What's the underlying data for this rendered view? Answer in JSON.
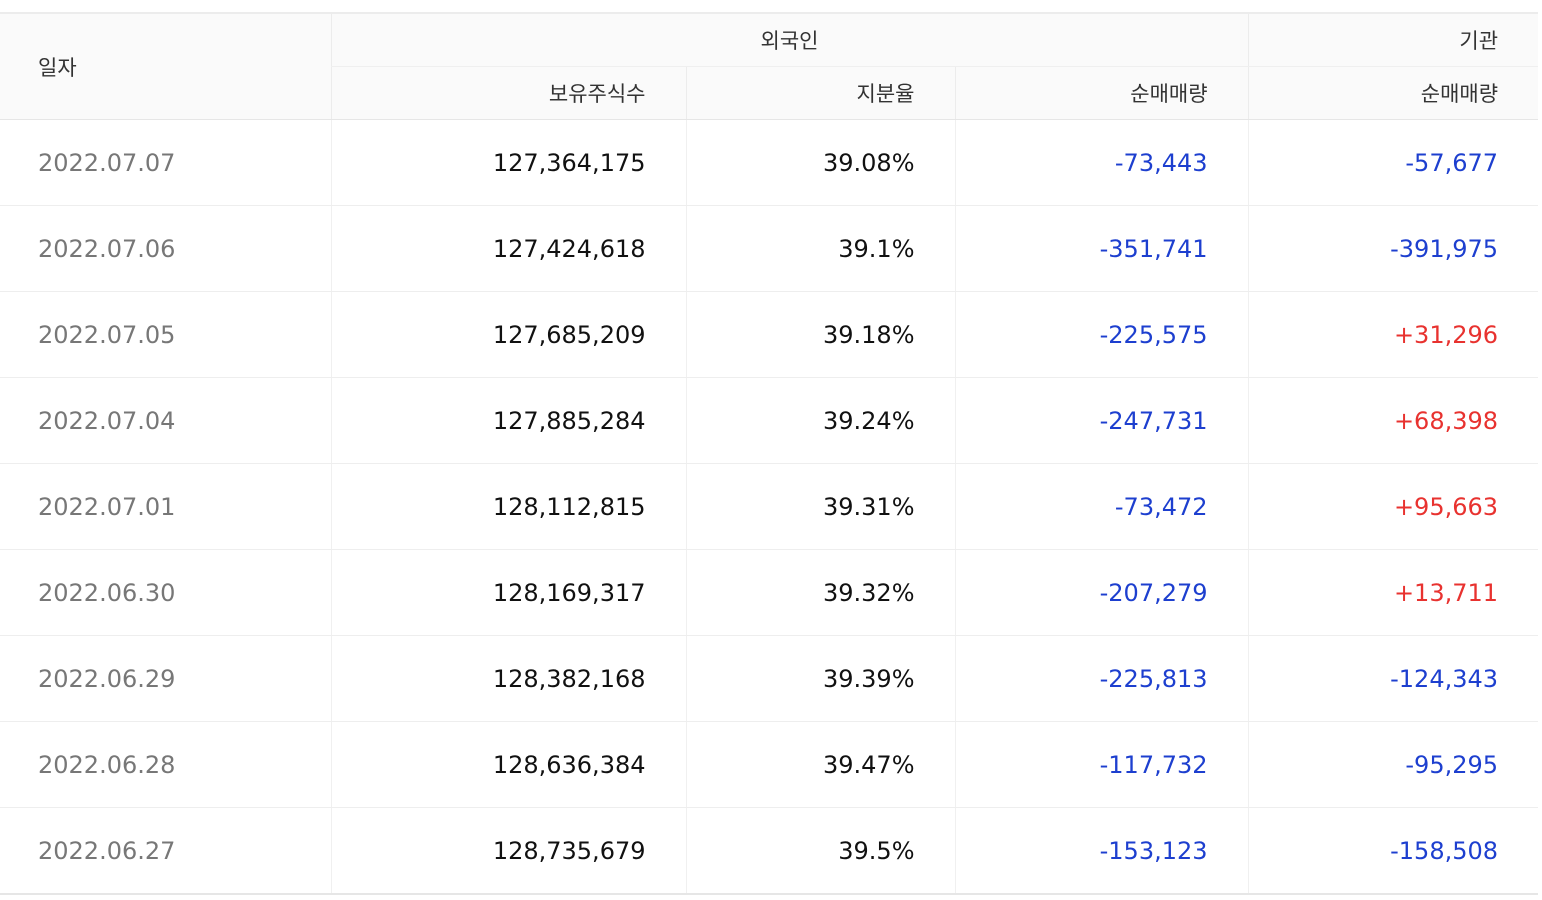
{
  "header": {
    "date_label": "일자",
    "foreign_label": "외국인",
    "institution_label": "기관",
    "holdings_label": "보유주식수",
    "ratio_label": "지분율",
    "foreign_net_label": "순매매량",
    "institution_net_label": "순매매량"
  },
  "colors": {
    "negative": "#1d3fcf",
    "positive": "#e8322f"
  },
  "rows": [
    {
      "date": "2022.07.07",
      "holdings": "127,364,175",
      "ratio": "39.08%",
      "foreign_net": "-73,443",
      "institution_net": "-57,677"
    },
    {
      "date": "2022.07.06",
      "holdings": "127,424,618",
      "ratio": "39.1%",
      "foreign_net": "-351,741",
      "institution_net": "-391,975"
    },
    {
      "date": "2022.07.05",
      "holdings": "127,685,209",
      "ratio": "39.18%",
      "foreign_net": "-225,575",
      "institution_net": "+31,296"
    },
    {
      "date": "2022.07.04",
      "holdings": "127,885,284",
      "ratio": "39.24%",
      "foreign_net": "-247,731",
      "institution_net": "+68,398"
    },
    {
      "date": "2022.07.01",
      "holdings": "128,112,815",
      "ratio": "39.31%",
      "foreign_net": "-73,472",
      "institution_net": "+95,663"
    },
    {
      "date": "2022.06.30",
      "holdings": "128,169,317",
      "ratio": "39.32%",
      "foreign_net": "-207,279",
      "institution_net": "+13,711"
    },
    {
      "date": "2022.06.29",
      "holdings": "128,382,168",
      "ratio": "39.39%",
      "foreign_net": "-225,813",
      "institution_net": "-124,343"
    },
    {
      "date": "2022.06.28",
      "holdings": "128,636,384",
      "ratio": "39.47%",
      "foreign_net": "-117,732",
      "institution_net": "-95,295"
    },
    {
      "date": "2022.06.27",
      "holdings": "128,735,679",
      "ratio": "39.5%",
      "foreign_net": "-153,123",
      "institution_net": "-158,508"
    }
  ]
}
